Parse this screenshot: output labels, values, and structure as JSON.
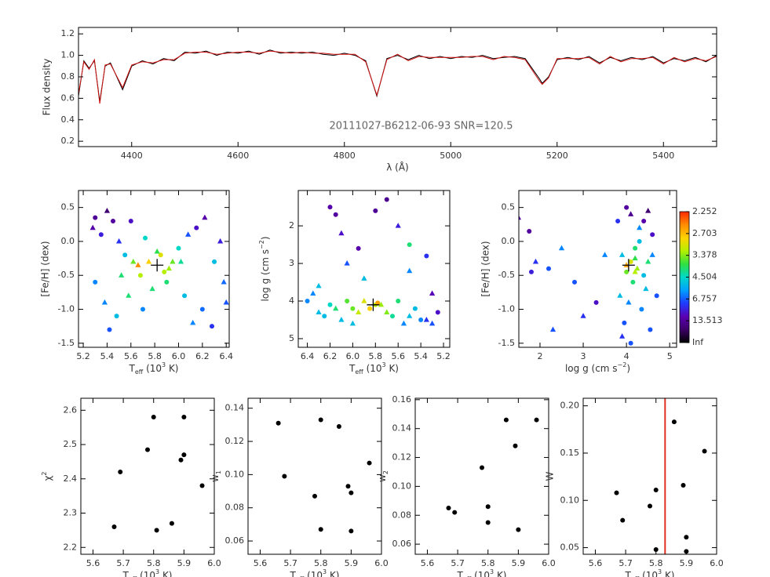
{
  "chart_data": [
    {
      "type": "line",
      "annotation": "20111027-B6212-06-93  SNR=120.5",
      "ylabel": "Flux density",
      "xlabel": "λ (Å)",
      "x": [
        4300,
        4310,
        4320,
        4330,
        4340,
        4350,
        4360,
        4383,
        4400,
        4420,
        4440,
        4460,
        4480,
        4500,
        4520,
        4540,
        4560,
        4580,
        4600,
        4620,
        4640,
        4660,
        4680,
        4700,
        4720,
        4740,
        4760,
        4780,
        4800,
        4820,
        4840,
        4861,
        4880,
        4900,
        4920,
        4940,
        4960,
        4980,
        5000,
        5020,
        5040,
        5060,
        5080,
        5100,
        5120,
        5140,
        5167,
        5172,
        5184,
        5200,
        5220,
        5240,
        5260,
        5280,
        5300,
        5320,
        5340,
        5360,
        5380,
        5400,
        5420,
        5440,
        5460,
        5480,
        5500
      ],
      "series": [
        {
          "color": "#000000",
          "values": [
            0.62,
            0.95,
            0.88,
            0.95,
            0.57,
            0.9,
            0.93,
            0.68,
            0.9,
            0.95,
            0.92,
            0.97,
            0.95,
            1.03,
            1.02,
            1.04,
            1.0,
            1.03,
            1.02,
            1.04,
            1.01,
            1.05,
            1.02,
            1.03,
            1.02,
            1.03,
            1.01,
            1.0,
            1.02,
            1.0,
            0.95,
            0.62,
            0.97,
            1.0,
            0.96,
            1.0,
            0.97,
            0.99,
            0.97,
            0.99,
            0.98,
            1.0,
            0.97,
            0.98,
            0.99,
            0.97,
            0.78,
            0.74,
            0.8,
            0.96,
            0.98,
            0.96,
            0.99,
            0.93,
            0.98,
            0.95,
            0.98,
            0.96,
            0.99,
            0.93,
            0.97,
            0.95,
            0.98,
            0.94,
            1.0
          ]
        },
        {
          "color": "#d01010",
          "values": [
            0.64,
            0.94,
            0.87,
            0.96,
            0.55,
            0.91,
            0.92,
            0.7,
            0.91,
            0.94,
            0.93,
            0.96,
            0.96,
            1.02,
            1.03,
            1.03,
            1.01,
            1.02,
            1.03,
            1.03,
            1.02,
            1.04,
            1.03,
            1.02,
            1.03,
            1.02,
            1.02,
            1.01,
            1.01,
            1.01,
            0.94,
            0.63,
            0.96,
            1.01,
            0.95,
            0.99,
            0.98,
            0.98,
            0.98,
            0.98,
            0.99,
            0.99,
            0.96,
            0.99,
            0.98,
            0.96,
            0.76,
            0.73,
            0.79,
            0.97,
            0.97,
            0.97,
            0.98,
            0.92,
            0.99,
            0.94,
            0.97,
            0.97,
            0.98,
            0.92,
            0.98,
            0.94,
            0.97,
            0.95,
            0.99
          ]
        }
      ],
      "xlim": [
        4300,
        5500
      ],
      "xticks": [
        4400,
        4600,
        4800,
        5000,
        5200,
        5400
      ],
      "ylim": [
        0.15,
        1.26
      ],
      "yticks": [
        0.2,
        0.4,
        0.6,
        0.8,
        {
          "value": 1.0,
          "label": "1.0"
        },
        1.2
      ]
    },
    {
      "type": "scatter",
      "xlabel": {
        "parts": [
          "T",
          "eff",
          " (10",
          "3",
          " K)"
        ],
        "styles": [
          "normal",
          "sub",
          "normal",
          "sup",
          "normal"
        ]
      },
      "ylabel": "[Fe/H] (dex)",
      "x": [
        5.3,
        5.28,
        5.35,
        5.4,
        5.45,
        5.5,
        5.55,
        5.62,
        5.3,
        5.38,
        5.48,
        5.58,
        5.68,
        5.75,
        5.85,
        5.92,
        6.0,
        6.08,
        6.15,
        6.22,
        6.3,
        6.38,
        5.7,
        5.78,
        5.88,
        5.95,
        6.05,
        6.12,
        5.6,
        5.66,
        5.72,
        5.82,
        5.9,
        6.02,
        6.2,
        6.35,
        5.42,
        5.52,
        6.28,
        6.4
      ],
      "y": [
        0.35,
        0.2,
        0.1,
        0.45,
        0.3,
        0.0,
        -0.2,
        -0.3,
        -0.6,
        -0.9,
        -1.1,
        -0.8,
        -0.5,
        -0.3,
        -0.2,
        -0.4,
        -0.1,
        0.1,
        0.2,
        0.35,
        -0.3,
        -0.6,
        -1.0,
        -0.7,
        -0.45,
        -0.3,
        -0.8,
        -1.2,
        0.3,
        -0.35,
        0.05,
        -0.15,
        -0.6,
        -0.3,
        -1.0,
        0.0,
        -1.3,
        -0.5,
        -1.25,
        -0.9
      ],
      "c": [
        14,
        12,
        9,
        20,
        13,
        8,
        5,
        3.5,
        6,
        6,
        5,
        4,
        3.2,
        2.8,
        3,
        3.3,
        4.5,
        7,
        10,
        12,
        5,
        6.5,
        6,
        4,
        3.2,
        3.5,
        5,
        6,
        10,
        2.5,
        4.5,
        3.8,
        4,
        4.2,
        6.5,
        9,
        7,
        4,
        8,
        7
      ],
      "markers": [
        "circle",
        "triangle",
        "circle",
        "triangle",
        "circle",
        "triangle",
        "circle",
        "triangle",
        "circle",
        "triangle",
        "circle",
        "triangle",
        "circle",
        "triangle",
        "circle",
        "triangle",
        "circle",
        "triangle",
        "circle",
        "triangle",
        "circle",
        "triangle",
        "circle",
        "triangle",
        "circle",
        "triangle",
        "circle",
        "triangle",
        "circle",
        "triangle",
        "circle",
        "triangle",
        "circle",
        "triangle",
        "circle",
        "triangle",
        "circle",
        "triangle",
        "circle",
        "triangle"
      ],
      "best": [
        5.82,
        -0.35
      ],
      "xlim": [
        5.16,
        6.425
      ],
      "xticks": [
        5.2,
        5.4,
        5.6,
        5.8,
        {
          "value": 6.0,
          "label": "6.0"
        },
        6.2,
        6.4
      ],
      "ylim": [
        -1.56,
        0.75
      ],
      "yticks": [
        -1.5,
        {
          "value": -1.0,
          "label": "-1.0"
        },
        -0.5,
        {
          "value": 0.0,
          "label": "0.0"
        },
        0.5
      ]
    },
    {
      "type": "scatter",
      "xlabel": {
        "parts": [
          "T",
          "eff",
          " (10",
          "3",
          " K)"
        ],
        "styles": [
          "normal",
          "sub",
          "normal",
          "sup",
          "normal"
        ]
      },
      "ylabel": {
        "parts": [
          "log g (cm s",
          "−2",
          ")"
        ],
        "styles": [
          "normal",
          "sup",
          "normal"
        ]
      },
      "x": [
        6.4,
        6.3,
        6.2,
        6.1,
        6.0,
        5.9,
        5.8,
        5.7,
        5.6,
        5.5,
        5.4,
        5.3,
        5.25,
        6.35,
        6.25,
        6.15,
        6.05,
        5.95,
        5.85,
        5.75,
        5.65,
        5.55,
        5.45,
        5.35,
        6.2,
        6.1,
        5.8,
        5.5,
        5.35,
        6.05,
        5.7,
        6.3,
        5.95,
        5.6,
        6.15,
        5.9,
        5.78,
        5.3,
        5.5,
        6.0
      ],
      "y": [
        4.0,
        4.3,
        4.1,
        4.5,
        4.2,
        4.0,
        4.1,
        4.3,
        4.0,
        4.4,
        4.5,
        4.6,
        4.3,
        3.8,
        4.4,
        4.2,
        4.0,
        4.3,
        4.2,
        4.1,
        4.4,
        4.6,
        4.2,
        4.5,
        1.5,
        2.2,
        1.6,
        3.2,
        2.8,
        3.0,
        1.3,
        3.6,
        2.6,
        2.0,
        1.7,
        3.4,
        4.05,
        3.8,
        2.5,
        4.6
      ],
      "c": [
        6,
        5,
        4.5,
        5,
        3.5,
        3,
        3.2,
        3.4,
        4,
        5,
        6,
        7,
        10,
        6,
        5,
        4,
        3.6,
        3.1,
        2.8,
        3.3,
        4.2,
        6,
        5,
        8,
        12,
        10,
        14,
        6,
        8,
        7,
        15,
        5,
        12,
        9,
        13,
        5,
        2.6,
        11,
        4,
        5
      ],
      "markers": [
        "circle",
        "triangle",
        "circle",
        "triangle",
        "circle",
        "triangle",
        "circle",
        "triangle",
        "circle",
        "triangle",
        "circle",
        "triangle",
        "circle",
        "triangle",
        "circle",
        "triangle",
        "circle",
        "triangle",
        "circle",
        "triangle",
        "circle",
        "triangle",
        "circle",
        "triangle",
        "circle",
        "triangle",
        "circle",
        "triangle",
        "circle",
        "triangle",
        "circle",
        "triangle",
        "circle",
        "triangle",
        "circle",
        "triangle",
        "circle",
        "triangle",
        "circle",
        "triangle"
      ],
      "best": [
        5.82,
        4.1
      ],
      "xlim": [
        6.48,
        5.145
      ],
      "xticks": [
        6.4,
        6.2,
        {
          "value": 6.0,
          "label": "6.0"
        },
        5.8,
        5.6,
        5.4,
        5.2
      ],
      "ylim": [
        5.23,
        1.06
      ],
      "yticks": [
        2,
        3,
        4,
        5
      ]
    },
    {
      "type": "scatter",
      "xlabel": {
        "parts": [
          "log g (cm s",
          "−2",
          ")"
        ],
        "styles": [
          "normal",
          "sup",
          "normal"
        ]
      },
      "ylabel": "[Fe/H] (dex)",
      "x": [
        3.8,
        3.9,
        4.0,
        4.1,
        4.2,
        4.3,
        4.4,
        4.5,
        4.6,
        3.85,
        3.95,
        4.05,
        4.15,
        4.25,
        4.35,
        4.45,
        4.55,
        4.0,
        4.1,
        4.2,
        4.3,
        3.9,
        4.4,
        4.6,
        4.7,
        1.5,
        1.75,
        1.9,
        2.2,
        2.5,
        2.8,
        3.0,
        3.3,
        2.3,
        1.8,
        3.5,
        4.0,
        4.2,
        4.1,
        4.5
      ],
      "y": [
        0.3,
        -0.2,
        0.5,
        0.4,
        -0.1,
        0.2,
        -0.5,
        -0.3,
        0.1,
        -0.8,
        -1.2,
        -0.9,
        -0.6,
        -0.4,
        -1.0,
        -0.7,
        -1.3,
        -0.35,
        -0.3,
        -0.45,
        0.0,
        -1.4,
        0.3,
        -0.2,
        -0.8,
        0.35,
        0.15,
        -0.3,
        -0.4,
        -0.1,
        -0.6,
        -1.1,
        -0.9,
        -1.3,
        -0.45,
        -0.2,
        -0.45,
        -0.25,
        -1.5,
        0.45
      ],
      "c": [
        8,
        5,
        13,
        15,
        4,
        6,
        5,
        4,
        10,
        5,
        7,
        6,
        4,
        3.3,
        6,
        5,
        7,
        2.6,
        3,
        3.2,
        5,
        8,
        12,
        6,
        7,
        12,
        13,
        8,
        7,
        6,
        7,
        8,
        10,
        7,
        9,
        6,
        3.5,
        3.8,
        7,
        20
      ],
      "markers": [
        "circle",
        "triangle",
        "circle",
        "triangle",
        "circle",
        "triangle",
        "circle",
        "triangle",
        "circle",
        "triangle",
        "circle",
        "triangle",
        "circle",
        "triangle",
        "circle",
        "triangle",
        "circle",
        "triangle",
        "circle",
        "triangle",
        "circle",
        "triangle",
        "circle",
        "triangle",
        "circle",
        "triangle",
        "circle",
        "triangle",
        "circle",
        "triangle",
        "circle",
        "triangle",
        "circle",
        "triangle",
        "circle",
        "triangle",
        "circle",
        "triangle",
        "circle",
        "triangle"
      ],
      "best": [
        4.05,
        -0.35
      ],
      "xlim": [
        1.51,
        5.16
      ],
      "xticks": [
        2,
        3,
        4,
        5
      ],
      "ylim": [
        -1.56,
        0.75
      ],
      "yticks": [
        -1.5,
        {
          "value": -1.0,
          "label": "-1.0"
        },
        -0.5,
        {
          "value": 0.0,
          "label": "0.0"
        },
        0.5
      ],
      "colorbar": {
        "scale": "reciprocal",
        "ticks": [
          2.252,
          2.703,
          3.378,
          4.504,
          6.757,
          13.513,
          {
            "value": null,
            "label": "Inf"
          }
        ],
        "colormap": [
          "#000000",
          "#3c0068",
          "#5a00b4",
          "#1e3cff",
          "#00a0ff",
          "#00d8c8",
          "#30e040",
          "#b4f000",
          "#ffd200",
          "#ff8c00",
          "#ff2800"
        ]
      }
    },
    {
      "type": "dots",
      "color": "#000000",
      "xlabel": {
        "parts": [
          "T",
          "eff",
          " (10",
          "3",
          " K)"
        ],
        "styles": [
          "normal",
          "sub",
          "normal",
          "sup",
          "normal"
        ]
      },
      "ylabel": {
        "parts": [
          "χ",
          "2"
        ],
        "styles": [
          "normal",
          "sup"
        ]
      },
      "x": [
        5.67,
        5.69,
        5.78,
        5.8,
        5.81,
        5.86,
        5.89,
        5.9,
        5.9,
        5.96
      ],
      "y": [
        2.26,
        2.42,
        2.485,
        2.58,
        2.25,
        2.27,
        2.455,
        2.47,
        2.58,
        2.38
      ],
      "xlim": [
        5.56,
        6.0
      ],
      "xticks": [
        5.6,
        5.7,
        5.8,
        5.9,
        {
          "value": 6.0,
          "label": "6.0"
        }
      ],
      "ylim": [
        2.18,
        2.635
      ],
      "yticks": [
        2.2,
        2.3,
        2.4,
        2.5,
        2.6
      ]
    },
    {
      "type": "dots",
      "color": "#000000",
      "xlabel": {
        "parts": [
          "T",
          "eff",
          " (10",
          "3",
          " K)"
        ],
        "styles": [
          "normal",
          "sub",
          "normal",
          "sup",
          "normal"
        ]
      },
      "ylabel": {
        "parts": [
          "w",
          "1"
        ],
        "styles": [
          "normal",
          "sub"
        ]
      },
      "x": [
        5.66,
        5.68,
        5.78,
        5.8,
        5.8,
        5.86,
        5.89,
        5.9,
        5.9,
        5.96
      ],
      "y": [
        0.131,
        0.099,
        0.087,
        0.133,
        0.067,
        0.129,
        0.093,
        0.089,
        0.066,
        0.107
      ],
      "xlim": [
        5.56,
        6.0
      ],
      "xticks": [
        5.6,
        5.7,
        5.8,
        5.9,
        {
          "value": 6.0,
          "label": "6.0"
        }
      ],
      "ylim": [
        0.052,
        0.146
      ],
      "yticks": [
        0.06,
        0.08,
        {
          "value": 0.1,
          "label": "0.10"
        },
        0.12,
        0.14
      ]
    },
    {
      "type": "dots",
      "color": "#000000",
      "xlabel": {
        "parts": [
          "T",
          "eff",
          " (10",
          "3",
          " K)"
        ],
        "styles": [
          "normal",
          "sub",
          "normal",
          "sup",
          "normal"
        ]
      },
      "ylabel": {
        "parts": [
          "w",
          "2"
        ],
        "styles": [
          "normal",
          "sub"
        ]
      },
      "x": [
        5.67,
        5.69,
        5.78,
        5.8,
        5.8,
        5.86,
        5.89,
        5.9,
        5.96
      ],
      "y": [
        0.085,
        0.082,
        0.113,
        0.086,
        0.075,
        0.146,
        0.128,
        0.07,
        0.146
      ],
      "xlim": [
        5.56,
        6.0
      ],
      "xticks": [
        5.6,
        5.7,
        5.8,
        5.9,
        {
          "value": 6.0,
          "label": "6.0"
        }
      ],
      "ylim": [
        0.053,
        0.161
      ],
      "yticks": [
        0.06,
        0.08,
        {
          "value": 0.1,
          "label": "0.10"
        },
        0.12,
        0.14,
        0.16
      ]
    },
    {
      "type": "dots",
      "color": "#000000",
      "xlabel": {
        "parts": [
          "T",
          "eff",
          " (10",
          "3",
          " K)"
        ],
        "styles": [
          "normal",
          "sub",
          "normal",
          "sup",
          "normal"
        ]
      },
      "ylabel": "W",
      "x": [
        5.67,
        5.69,
        5.78,
        5.8,
        5.8,
        5.86,
        5.89,
        5.9,
        5.9,
        5.96
      ],
      "y": [
        0.108,
        0.079,
        0.094,
        0.111,
        0.048,
        0.183,
        0.116,
        0.061,
        0.046,
        0.152
      ],
      "vline": 5.83,
      "vline_color": "#e03020",
      "xlim": [
        5.56,
        6.0
      ],
      "xticks": [
        5.6,
        5.7,
        5.8,
        5.9,
        {
          "value": 6.0,
          "label": "6.0"
        }
      ],
      "ylim": [
        0.043,
        0.208
      ],
      "yticks": [
        0.05,
        {
          "value": 0.1,
          "label": "0.10"
        },
        0.15,
        {
          "value": 0.2,
          "label": "0.20"
        }
      ]
    }
  ]
}
